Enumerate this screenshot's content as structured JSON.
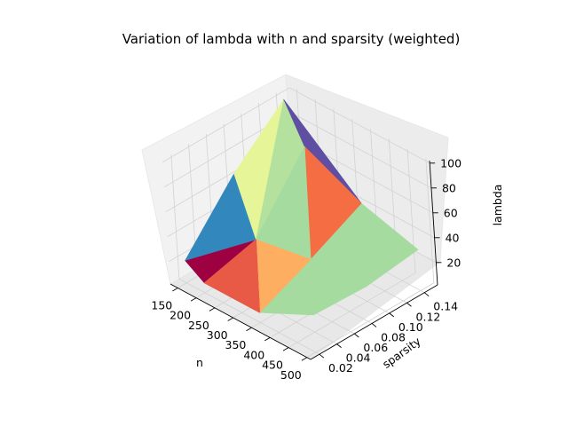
{
  "chart_data": {
    "type": "surface3d",
    "title": "Variation of lambda with n and sparsity (weighted)",
    "xlabel": "n",
    "ylabel": "sparsity",
    "zlabel": "lambda",
    "x_ticks": [
      "150",
      "200",
      "250",
      "300",
      "350",
      "400",
      "450",
      "500"
    ],
    "y_ticks": [
      "0.02",
      "0.04",
      "0.06",
      "0.08",
      "0.10",
      "0.12",
      "0.14"
    ],
    "z_ticks": [
      "20",
      "40",
      "60",
      "80",
      "100"
    ],
    "xlim": [
      130,
      510
    ],
    "ylim": [
      0.01,
      0.155
    ],
    "zlim": [
      2,
      102
    ],
    "grid": true,
    "colormap": "Spectral",
    "points": {
      "A": [
        150,
        0.02,
        20
      ],
      "B": [
        150,
        0.08,
        65
      ],
      "C": [
        150,
        0.14,
        100
      ],
      "D": [
        200,
        0.02,
        10
      ],
      "E": [
        200,
        0.08,
        20
      ],
      "F": [
        200,
        0.14,
        70
      ],
      "G": [
        350,
        0.02,
        10
      ],
      "H": [
        350,
        0.08,
        28
      ],
      "I": [
        350,
        0.14,
        48
      ],
      "J": [
        500,
        0.02,
        32
      ],
      "K": [
        500,
        0.08,
        30
      ],
      "L": [
        500,
        0.14,
        35
      ]
    },
    "faces": [
      {
        "v": [
          "A",
          "E",
          "D"
        ],
        "color": "#9e0142"
      },
      {
        "v": [
          "A",
          "B",
          "E"
        ],
        "color": "#3288bd"
      },
      {
        "v": [
          "B",
          "C",
          "E"
        ],
        "color": "#e6f598"
      },
      {
        "v": [
          "C",
          "F",
          "E"
        ],
        "color": "#b4e29e"
      },
      {
        "v": [
          "C",
          "I",
          "F"
        ],
        "color": "#5e4fa2"
      },
      {
        "v": [
          "F",
          "I",
          "H"
        ],
        "color": "#f46d43"
      },
      {
        "v": [
          "E",
          "F",
          "H"
        ],
        "color": "#a6dba0"
      },
      {
        "v": [
          "I",
          "L",
          "H"
        ],
        "color": "#a6dba0"
      },
      {
        "v": [
          "H",
          "L",
          "K"
        ],
        "color": "#a6dba0"
      },
      {
        "v": [
          "G",
          "K",
          "J"
        ],
        "color": "#a6dba0"
      },
      {
        "v": [
          "G",
          "H",
          "K"
        ],
        "color": "#a6dba0"
      },
      {
        "v": [
          "E",
          "H",
          "G"
        ],
        "color": "#fdae61"
      },
      {
        "v": [
          "D",
          "E",
          "G"
        ],
        "color": "#d53e4f"
      },
      {
        "v": [
          "D",
          "E",
          "G"
        ],
        "color": "#e85a45"
      }
    ]
  }
}
